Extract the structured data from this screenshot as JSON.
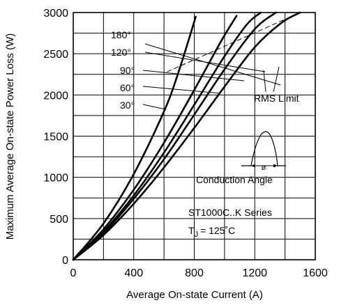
{
  "chart_data": {
    "type": "line",
    "title": "",
    "xlabel": "Average On-state Current (A)",
    "ylabel": "Maximum Average On-state Power Loss (W)",
    "xlim": [
      0,
      1600
    ],
    "ylim": [
      0,
      3000
    ],
    "xticks": [
      "0",
      "400",
      "800",
      "1200",
      "1600"
    ],
    "yticks": [
      "0",
      "500",
      "1000",
      "1500",
      "2000",
      "2500",
      "3000"
    ],
    "grid": true,
    "series": [
      {
        "name": "180°",
        "x": [
          0,
          200,
          400,
          600,
          800,
          1000,
          1200,
          1380,
          1500
        ],
        "y": [
          0,
          300,
          680,
          1120,
          1600,
          2100,
          2580,
          2880,
          3000
        ]
      },
      {
        "name": "120°",
        "x": [
          0,
          200,
          400,
          600,
          800,
          1000,
          1200,
          1340
        ],
        "y": [
          0,
          320,
          740,
          1220,
          1760,
          2310,
          2800,
          3000
        ]
      },
      {
        "name": "90°",
        "x": [
          0,
          200,
          400,
          600,
          800,
          1000,
          1150,
          1240
        ],
        "y": [
          0,
          340,
          780,
          1300,
          1880,
          2470,
          2860,
          3000
        ]
      },
      {
        "name": "60°",
        "x": [
          0,
          200,
          400,
          600,
          800,
          980,
          1080
        ],
        "y": [
          0,
          370,
          850,
          1420,
          2060,
          2660,
          2960
        ]
      },
      {
        "name": "30°",
        "x": [
          0,
          200,
          400,
          600,
          700,
          810
        ],
        "y": [
          0,
          440,
          1040,
          1800,
          2300,
          2950
        ]
      }
    ],
    "rms_limit": {
      "label": "RMS Limit",
      "x": [
        620,
        1500
      ],
      "y": [
        2280,
        3000
      ]
    },
    "annotations": {
      "conduction": "Conduction Angle",
      "phi": "ø",
      "series_title": "ST1000C..K Series",
      "tj_prefix": "T",
      "tj_sub": "J",
      "tj_value": "= 125˚C"
    }
  }
}
